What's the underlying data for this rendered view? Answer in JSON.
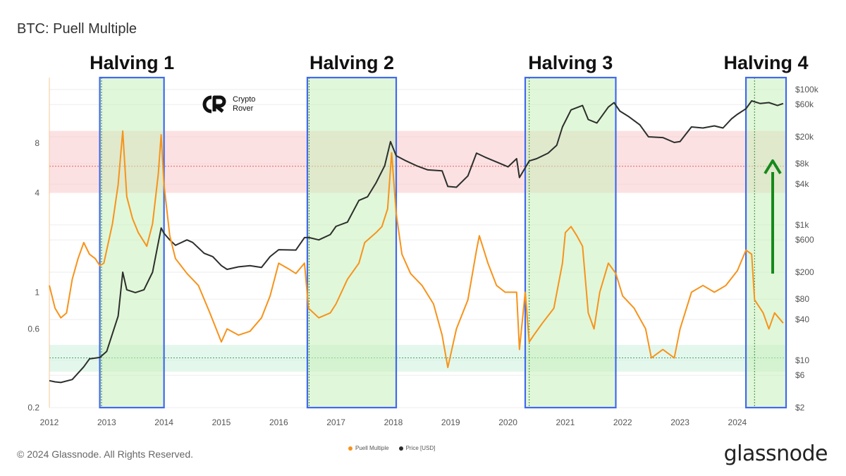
{
  "title": "BTC: Puell Multiple",
  "footer": "© 2024 Glassnode. All Rights Reserved.",
  "brand": "glassnode",
  "logo_text": {
    "line1": "Crypto",
    "line2": "Rover"
  },
  "colors": {
    "puell": "#f7931a",
    "price": "#2b2f2b",
    "halving_fill": "#c9f0b9",
    "halving_border": "#4169ee",
    "red_band": "#f9c9cc",
    "green_band": "#cdf1dd",
    "arrow": "#168a1b"
  },
  "chart_data": {
    "type": "line",
    "title": "BTC: Puell Multiple",
    "x_ticks": [
      "2012",
      "2013",
      "2014",
      "2015",
      "2016",
      "2017",
      "2018",
      "2019",
      "2020",
      "2021",
      "2022",
      "2023",
      "2024"
    ],
    "x_range": [
      2012.0,
      2024.85
    ],
    "y_left": {
      "scale": "log",
      "ticks": [
        "8",
        "4",
        "1",
        "0.6",
        "0.2"
      ],
      "tick_values": [
        8,
        4,
        1,
        0.6,
        0.2
      ],
      "range": [
        0.2,
        20
      ]
    },
    "y_right": {
      "scale": "log",
      "ticks": [
        "$100k",
        "$60k",
        "$20k",
        "$8k",
        "$4k",
        "$1k",
        "$600",
        "$200",
        "$80",
        "$40",
        "$10",
        "$6",
        "$2"
      ],
      "tick_values": [
        100000,
        60000,
        20000,
        8000,
        4000,
        1000,
        600,
        200,
        80,
        40,
        10,
        6,
        2
      ],
      "range": [
        2,
        150000
      ]
    },
    "bands": {
      "red": {
        "from": 4,
        "to": 9.5,
        "midline": 5.8
      },
      "green": {
        "from": 0.33,
        "to": 0.48,
        "midline": 0.4
      }
    },
    "halvings": [
      {
        "label": "Halving 1",
        "start": 2012.88,
        "end": 2014.0,
        "marker": 2012.91
      },
      {
        "label": "Halving 2",
        "start": 2016.5,
        "end": 2018.05,
        "marker": 2016.53
      },
      {
        "label": "Halving 3",
        "start": 2020.3,
        "end": 2021.88,
        "marker": 2020.37
      },
      {
        "label": "Halving 4",
        "start": 2024.15,
        "end": 2024.85,
        "marker": 2024.3
      }
    ],
    "series": [
      {
        "name": "Puell Multiple",
        "values": [
          [
            2012.0,
            1.1
          ],
          [
            2012.1,
            0.8
          ],
          [
            2012.2,
            0.7
          ],
          [
            2012.3,
            0.75
          ],
          [
            2012.4,
            1.2
          ],
          [
            2012.5,
            1.6
          ],
          [
            2012.6,
            2.0
          ],
          [
            2012.7,
            1.7
          ],
          [
            2012.8,
            1.6
          ],
          [
            2012.88,
            1.45
          ],
          [
            2012.95,
            1.5
          ],
          [
            2013.1,
            2.6
          ],
          [
            2013.2,
            4.5
          ],
          [
            2013.28,
            9.5
          ],
          [
            2013.35,
            3.8
          ],
          [
            2013.45,
            2.8
          ],
          [
            2013.55,
            2.3
          ],
          [
            2013.7,
            1.9
          ],
          [
            2013.8,
            2.6
          ],
          [
            2013.9,
            5.2
          ],
          [
            2013.95,
            9.0
          ],
          [
            2014.0,
            4.5
          ],
          [
            2014.1,
            2.2
          ],
          [
            2014.2,
            1.6
          ],
          [
            2014.4,
            1.3
          ],
          [
            2014.6,
            1.1
          ],
          [
            2014.8,
            0.75
          ],
          [
            2015.0,
            0.5
          ],
          [
            2015.1,
            0.6
          ],
          [
            2015.3,
            0.55
          ],
          [
            2015.5,
            0.58
          ],
          [
            2015.7,
            0.7
          ],
          [
            2015.85,
            0.95
          ],
          [
            2016.0,
            1.5
          ],
          [
            2016.15,
            1.4
          ],
          [
            2016.3,
            1.3
          ],
          [
            2016.45,
            1.5
          ],
          [
            2016.52,
            0.8
          ],
          [
            2016.7,
            0.7
          ],
          [
            2016.9,
            0.75
          ],
          [
            2017.0,
            0.85
          ],
          [
            2017.2,
            1.2
          ],
          [
            2017.4,
            1.5
          ],
          [
            2017.5,
            2.0
          ],
          [
            2017.7,
            2.3
          ],
          [
            2017.8,
            2.5
          ],
          [
            2017.9,
            3.2
          ],
          [
            2017.97,
            7.0
          ],
          [
            2018.05,
            3.0
          ],
          [
            2018.15,
            1.7
          ],
          [
            2018.3,
            1.3
          ],
          [
            2018.5,
            1.1
          ],
          [
            2018.7,
            0.85
          ],
          [
            2018.85,
            0.55
          ],
          [
            2018.95,
            0.35
          ],
          [
            2019.1,
            0.6
          ],
          [
            2019.3,
            0.9
          ],
          [
            2019.45,
            1.8
          ],
          [
            2019.5,
            2.2
          ],
          [
            2019.65,
            1.5
          ],
          [
            2019.8,
            1.1
          ],
          [
            2019.95,
            1.0
          ],
          [
            2020.15,
            1.0
          ],
          [
            2020.2,
            0.45
          ],
          [
            2020.3,
            1.0
          ],
          [
            2020.37,
            0.5
          ],
          [
            2020.45,
            0.55
          ],
          [
            2020.6,
            0.65
          ],
          [
            2020.8,
            0.8
          ],
          [
            2020.95,
            1.5
          ],
          [
            2021.0,
            2.3
          ],
          [
            2021.1,
            2.5
          ],
          [
            2021.2,
            2.2
          ],
          [
            2021.3,
            1.9
          ],
          [
            2021.4,
            0.75
          ],
          [
            2021.5,
            0.6
          ],
          [
            2021.6,
            1.0
          ],
          [
            2021.75,
            1.5
          ],
          [
            2021.88,
            1.3
          ],
          [
            2022.0,
            0.95
          ],
          [
            2022.2,
            0.8
          ],
          [
            2022.4,
            0.6
          ],
          [
            2022.5,
            0.4
          ],
          [
            2022.7,
            0.45
          ],
          [
            2022.9,
            0.4
          ],
          [
            2023.0,
            0.6
          ],
          [
            2023.2,
            1.0
          ],
          [
            2023.4,
            1.1
          ],
          [
            2023.6,
            1.0
          ],
          [
            2023.8,
            1.1
          ],
          [
            2024.0,
            1.35
          ],
          [
            2024.15,
            1.8
          ],
          [
            2024.25,
            1.7
          ],
          [
            2024.3,
            0.9
          ],
          [
            2024.45,
            0.75
          ],
          [
            2024.55,
            0.6
          ],
          [
            2024.65,
            0.75
          ],
          [
            2024.8,
            0.65
          ]
        ]
      },
      {
        "name": "Price [USD]",
        "values": [
          [
            2012.0,
            5
          ],
          [
            2012.1,
            4.8
          ],
          [
            2012.2,
            4.7
          ],
          [
            2012.4,
            5.2
          ],
          [
            2012.6,
            8
          ],
          [
            2012.7,
            10.5
          ],
          [
            2012.88,
            11
          ],
          [
            2013.0,
            13.5
          ],
          [
            2013.2,
            45
          ],
          [
            2013.28,
            200
          ],
          [
            2013.35,
            110
          ],
          [
            2013.5,
            100
          ],
          [
            2013.65,
            110
          ],
          [
            2013.8,
            200
          ],
          [
            2013.95,
            900
          ],
          [
            2014.0,
            750
          ],
          [
            2014.1,
            600
          ],
          [
            2014.2,
            500
          ],
          [
            2014.4,
            600
          ],
          [
            2014.5,
            550
          ],
          [
            2014.7,
            380
          ],
          [
            2014.85,
            340
          ],
          [
            2015.0,
            250
          ],
          [
            2015.1,
            220
          ],
          [
            2015.3,
            240
          ],
          [
            2015.5,
            250
          ],
          [
            2015.7,
            235
          ],
          [
            2015.85,
            340
          ],
          [
            2016.0,
            430
          ],
          [
            2016.3,
            425
          ],
          [
            2016.45,
            650
          ],
          [
            2016.53,
            650
          ],
          [
            2016.7,
            600
          ],
          [
            2016.9,
            720
          ],
          [
            2017.0,
            950
          ],
          [
            2017.2,
            1100
          ],
          [
            2017.4,
            2300
          ],
          [
            2017.55,
            2600
          ],
          [
            2017.7,
            4200
          ],
          [
            2017.85,
            7500
          ],
          [
            2017.95,
            17000
          ],
          [
            2018.05,
            10500
          ],
          [
            2018.2,
            9000
          ],
          [
            2018.4,
            7500
          ],
          [
            2018.6,
            6500
          ],
          [
            2018.85,
            6300
          ],
          [
            2018.95,
            3700
          ],
          [
            2019.1,
            3600
          ],
          [
            2019.3,
            5300
          ],
          [
            2019.45,
            11500
          ],
          [
            2019.6,
            10000
          ],
          [
            2019.8,
            8500
          ],
          [
            2020.0,
            7200
          ],
          [
            2020.15,
            9500
          ],
          [
            2020.2,
            5000
          ],
          [
            2020.37,
            8800
          ],
          [
            2020.5,
            9500
          ],
          [
            2020.7,
            11500
          ],
          [
            2020.85,
            15000
          ],
          [
            2020.95,
            28000
          ],
          [
            2021.1,
            50000
          ],
          [
            2021.3,
            58000
          ],
          [
            2021.4,
            36000
          ],
          [
            2021.55,
            32000
          ],
          [
            2021.75,
            55000
          ],
          [
            2021.85,
            64000
          ],
          [
            2021.95,
            48000
          ],
          [
            2022.1,
            40000
          ],
          [
            2022.3,
            30000
          ],
          [
            2022.45,
            20000
          ],
          [
            2022.7,
            19500
          ],
          [
            2022.9,
            16500
          ],
          [
            2023.0,
            17000
          ],
          [
            2023.2,
            28000
          ],
          [
            2023.4,
            27000
          ],
          [
            2023.6,
            29000
          ],
          [
            2023.75,
            27000
          ],
          [
            2023.9,
            37000
          ],
          [
            2024.0,
            43000
          ],
          [
            2024.15,
            52000
          ],
          [
            2024.25,
            68000
          ],
          [
            2024.4,
            62000
          ],
          [
            2024.55,
            64000
          ],
          [
            2024.7,
            58000
          ],
          [
            2024.8,
            62000
          ]
        ]
      }
    ],
    "legend": [
      "Puell Multiple",
      "Price [USD]"
    ]
  }
}
